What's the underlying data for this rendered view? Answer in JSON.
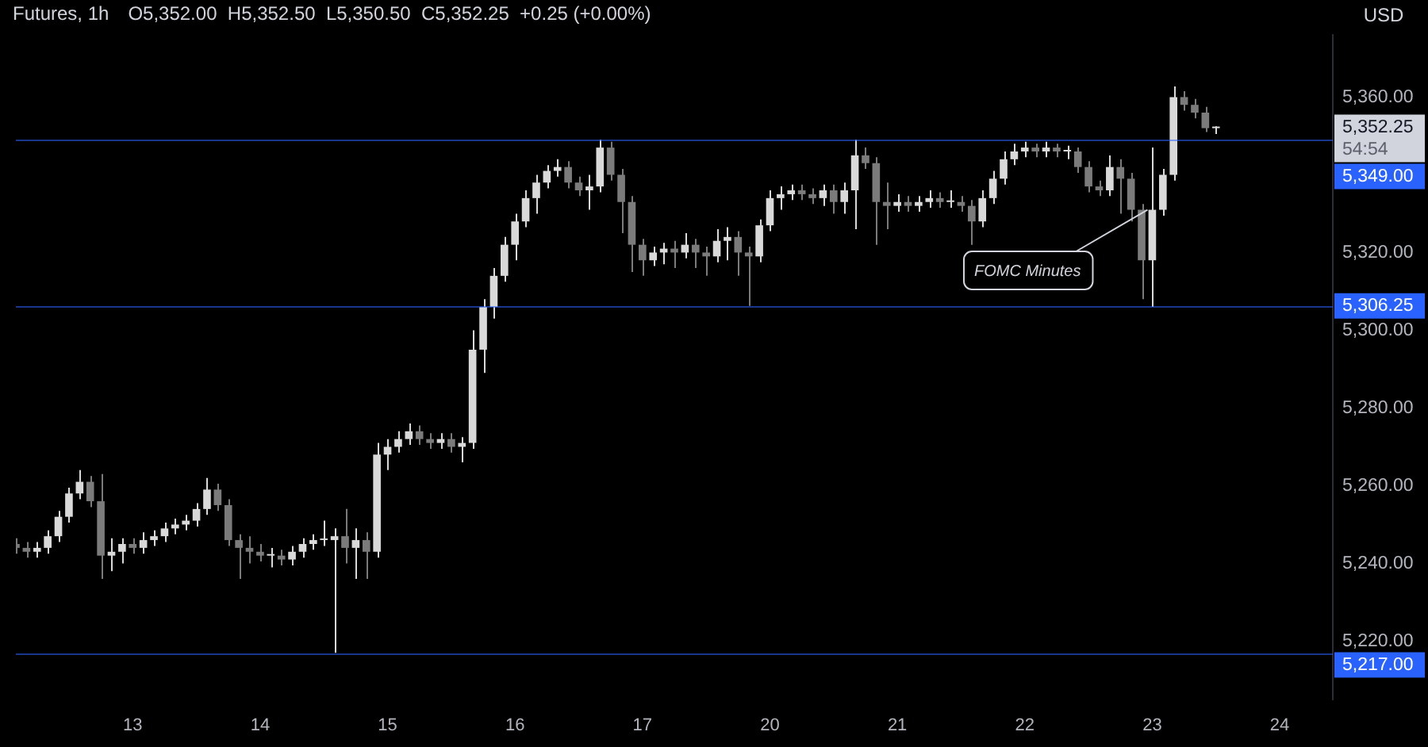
{
  "chart_data": {
    "type": "candlestick",
    "title": "Futures, 1h",
    "subtitle": "O5,352.00  H5,352.50  L5,350.50  C5,352.25  +0.25 (+0.00%)",
    "ylabel": "USD",
    "categories": [
      null,
      null,
      null,
      null,
      null,
      null,
      null,
      null,
      null,
      null,
      null,
      "13",
      null,
      null,
      null,
      null,
      null,
      null,
      null,
      null,
      null,
      null,
      null,
      "14",
      null,
      null,
      null,
      null,
      null,
      null,
      null,
      null,
      null,
      null,
      null,
      "15",
      null,
      null,
      null,
      null,
      null,
      null,
      null,
      null,
      null,
      null,
      null,
      "16",
      null,
      null,
      null,
      null,
      null,
      null,
      null,
      null,
      null,
      null,
      null,
      "17",
      null,
      null,
      null,
      null,
      null,
      null,
      null,
      null,
      null,
      null,
      null,
      "20",
      null,
      null,
      null,
      null,
      null,
      null,
      null,
      null,
      null,
      null,
      null,
      "21",
      null,
      null,
      null,
      null,
      null,
      null,
      null,
      null,
      null,
      null,
      null,
      "22",
      null,
      null,
      null,
      null,
      null,
      null,
      null,
      null,
      null,
      null,
      null,
      "23",
      null,
      null,
      null,
      null,
      null,
      null,
      null,
      null,
      null,
      null,
      null,
      "24",
      null,
      null,
      null,
      null,
      null
    ],
    "ohlc": [
      [
        5245,
        5246.5,
        5242.5,
        5244
      ],
      [
        5244,
        5245.5,
        5241.5,
        5243
      ],
      [
        5243,
        5245.5,
        5241.5,
        5244
      ],
      [
        5244,
        5248.5,
        5242.5,
        5247
      ],
      [
        5247,
        5253.5,
        5245.5,
        5252
      ],
      [
        5252,
        5259.5,
        5250.5,
        5258
      ],
      [
        5258,
        5264,
        5256.5,
        5261
      ],
      [
        5261,
        5262.5,
        5254.5,
        5256
      ],
      [
        5256,
        5263,
        5236,
        5242
      ],
      [
        5242,
        5246.5,
        5238,
        5243
      ],
      [
        5243,
        5246.5,
        5240,
        5245
      ],
      [
        5245,
        5246.5,
        5242.5,
        5244
      ],
      [
        5244,
        5248,
        5242.5,
        5246
      ],
      [
        5246,
        5248.5,
        5244.5,
        5247
      ],
      [
        5247,
        5250.5,
        5245.5,
        5249
      ],
      [
        5249,
        5251.5,
        5247.5,
        5250
      ],
      [
        5250,
        5252.5,
        5248.5,
        5251
      ],
      [
        5251,
        5255.5,
        5249.5,
        5254
      ],
      [
        5254,
        5262,
        5252.5,
        5259
      ],
      [
        5259,
        5260.5,
        5253.5,
        5255
      ],
      [
        5255,
        5256.5,
        5244.5,
        5246
      ],
      [
        5246,
        5247.5,
        5236,
        5244
      ],
      [
        5244,
        5247,
        5240,
        5243
      ],
      [
        5243,
        5245,
        5240.5,
        5242
      ],
      [
        5242,
        5244,
        5239,
        5242
      ],
      [
        5242,
        5243.5,
        5239.5,
        5241
      ],
      [
        5241,
        5244.5,
        5239.5,
        5243
      ],
      [
        5243,
        5246.5,
        5241.5,
        5245
      ],
      [
        5245,
        5247.5,
        5243.5,
        5246
      ],
      [
        5246,
        5251,
        5244.5,
        5246
      ],
      [
        5246,
        5249,
        5217,
        5247
      ],
      [
        5247,
        5254,
        5240,
        5244
      ],
      [
        5244,
        5249,
        5236,
        5246
      ],
      [
        5246,
        5248,
        5236,
        5243
      ],
      [
        5243,
        5271,
        5241.5,
        5268
      ],
      [
        5268,
        5272,
        5264,
        5270
      ],
      [
        5270,
        5274,
        5268.5,
        5272
      ],
      [
        5272,
        5276,
        5270.5,
        5274
      ],
      [
        5274,
        5275.5,
        5270.5,
        5272
      ],
      [
        5272,
        5273.5,
        5269.5,
        5271
      ],
      [
        5271,
        5273.5,
        5269.5,
        5272
      ],
      [
        5272,
        5273.5,
        5268.5,
        5270
      ],
      [
        5270,
        5272.5,
        5266,
        5271
      ],
      [
        5271,
        5300,
        5269.5,
        5295
      ],
      [
        5295,
        5308,
        5289,
        5306
      ],
      [
        5306,
        5316,
        5303,
        5314
      ],
      [
        5314,
        5324,
        5312.5,
        5322
      ],
      [
        5322,
        5330,
        5318,
        5328
      ],
      [
        5328,
        5336,
        5326.5,
        5334
      ],
      [
        5334,
        5340,
        5330,
        5338
      ],
      [
        5338,
        5342.5,
        5336.5,
        5341
      ],
      [
        5341,
        5344,
        5339.5,
        5342
      ],
      [
        5342,
        5343.5,
        5336.5,
        5338
      ],
      [
        5338,
        5339.5,
        5334.5,
        5336
      ],
      [
        5336,
        5340,
        5331,
        5337
      ],
      [
        5337,
        5349,
        5335.5,
        5347
      ],
      [
        5347,
        5348.5,
        5338.5,
        5340
      ],
      [
        5340,
        5341.5,
        5325,
        5333
      ],
      [
        5333,
        5334.5,
        5315,
        5322
      ],
      [
        5322,
        5323.5,
        5314,
        5318
      ],
      [
        5318,
        5321.5,
        5316.5,
        5320
      ],
      [
        5320,
        5322.5,
        5317,
        5321
      ],
      [
        5321,
        5323,
        5316,
        5320
      ],
      [
        5320,
        5325,
        5318.5,
        5322
      ],
      [
        5322,
        5323.5,
        5316,
        5320
      ],
      [
        5320,
        5321.5,
        5314,
        5319
      ],
      [
        5319,
        5326,
        5317.5,
        5323
      ],
      [
        5323,
        5326.5,
        5318,
        5324
      ],
      [
        5324,
        5325.5,
        5314,
        5320
      ],
      [
        5320,
        5321.5,
        5306.25,
        5319
      ],
      [
        5319,
        5328.5,
        5317.5,
        5327
      ],
      [
        5327,
        5336,
        5325.5,
        5334
      ],
      [
        5334,
        5337,
        5331,
        5335
      ],
      [
        5335,
        5337.5,
        5333.5,
        5336
      ],
      [
        5336,
        5337.5,
        5333.5,
        5335
      ],
      [
        5335,
        5336.5,
        5332.5,
        5334
      ],
      [
        5334,
        5337.5,
        5332,
        5336
      ],
      [
        5336,
        5337.5,
        5330,
        5333
      ],
      [
        5333,
        5338,
        5330,
        5336
      ],
      [
        5336,
        5349,
        5326,
        5345
      ],
      [
        5345,
        5347,
        5341.5,
        5343
      ],
      [
        5343,
        5344.5,
        5322,
        5333
      ],
      [
        5333,
        5338,
        5326,
        5332
      ],
      [
        5332,
        5335,
        5330.5,
        5333
      ],
      [
        5333,
        5334.5,
        5330.5,
        5332
      ],
      [
        5332,
        5334.5,
        5330.5,
        5333
      ],
      [
        5333,
        5336,
        5331.5,
        5334
      ],
      [
        5334,
        5335.5,
        5331.5,
        5333
      ],
      [
        5333,
        5336,
        5331.5,
        5333
      ],
      [
        5333,
        5334.5,
        5330.5,
        5332
      ],
      [
        5332,
        5333.5,
        5322,
        5328
      ],
      [
        5328,
        5336,
        5326.5,
        5334
      ],
      [
        5334,
        5341,
        5332.5,
        5339
      ],
      [
        5339,
        5346,
        5337.5,
        5344
      ],
      [
        5344,
        5348,
        5342.5,
        5346
      ],
      [
        5346,
        5348.5,
        5344.5,
        5347
      ],
      [
        5347,
        5348,
        5344.5,
        5346
      ],
      [
        5346,
        5348.5,
        5344.5,
        5347
      ],
      [
        5347,
        5348,
        5344.5,
        5346
      ],
      [
        5346,
        5347.5,
        5344,
        5346
      ],
      [
        5346,
        5347,
        5340.5,
        5342
      ],
      [
        5342,
        5343.5,
        5335.5,
        5337
      ],
      [
        5337,
        5338.5,
        5334.5,
        5336
      ],
      [
        5336,
        5345,
        5334.5,
        5342
      ],
      [
        5342,
        5344,
        5330,
        5339
      ],
      [
        5339,
        5340.5,
        5328,
        5331
      ],
      [
        5331,
        5332.5,
        5308,
        5318
      ],
      [
        5318,
        5347,
        5306,
        5331
      ],
      [
        5331,
        5341.5,
        5329.5,
        5340
      ],
      [
        5340,
        5362.75,
        5338.5,
        5360
      ],
      [
        5360,
        5361.5,
        5356.5,
        5358
      ],
      [
        5358,
        5359.5,
        5354.5,
        5356
      ],
      [
        5356,
        5357.5,
        5351,
        5352
      ],
      [
        5352,
        5352.5,
        5350.5,
        5352.25
      ],
      null,
      null,
      null,
      null,
      null,
      null,
      null,
      null,
      null,
      null,
      null
    ],
    "colors": [
      "#7b7b7b",
      "#7b7b7b",
      "#d9d9d9",
      "#d9d9d9",
      "#d9d9d9",
      "#d9d9d9",
      "#d9d9d9",
      "#7b7b7b",
      "#7b7b7b",
      "#d9d9d9",
      "#d9d9d9",
      "#7b7b7b",
      "#d9d9d9",
      "#d9d9d9",
      "#d9d9d9",
      "#d9d9d9",
      "#d9d9d9",
      "#d9d9d9",
      "#d9d9d9",
      "#7b7b7b",
      "#7b7b7b",
      "#7b7b7b",
      "#7b7b7b",
      "#7b7b7b",
      "#d9d9d9",
      "#7b7b7b",
      "#d9d9d9",
      "#d9d9d9",
      "#d9d9d9",
      "#d9d9d9",
      "#d9d9d9",
      "#7b7b7b",
      "#d9d9d9",
      "#7b7b7b",
      "#d9d9d9",
      "#d9d9d9",
      "#d9d9d9",
      "#d9d9d9",
      "#7b7b7b",
      "#7b7b7b",
      "#d9d9d9",
      "#7b7b7b",
      "#d9d9d9",
      "#d9d9d9",
      "#d9d9d9",
      "#d9d9d9",
      "#d9d9d9",
      "#d9d9d9",
      "#d9d9d9",
      "#d9d9d9",
      "#d9d9d9",
      "#d9d9d9",
      "#7b7b7b",
      "#7b7b7b",
      "#d9d9d9",
      "#d9d9d9",
      "#7b7b7b",
      "#7b7b7b",
      "#7b7b7b",
      "#7b7b7b",
      "#d9d9d9",
      "#d9d9d9",
      "#7b7b7b",
      "#d9d9d9",
      "#7b7b7b",
      "#7b7b7b",
      "#d9d9d9",
      "#d9d9d9",
      "#7b7b7b",
      "#7b7b7b",
      "#d9d9d9",
      "#d9d9d9",
      "#d9d9d9",
      "#d9d9d9",
      "#7b7b7b",
      "#7b7b7b",
      "#d9d9d9",
      "#7b7b7b",
      "#d9d9d9",
      "#d9d9d9",
      "#7b7b7b",
      "#7b7b7b",
      "#7b7b7b",
      "#d9d9d9",
      "#7b7b7b",
      "#d9d9d9",
      "#d9d9d9",
      "#7b7b7b",
      "#d9d9d9",
      "#7b7b7b",
      "#7b7b7b",
      "#d9d9d9",
      "#d9d9d9",
      "#d9d9d9",
      "#d9d9d9",
      "#d9d9d9",
      "#7b7b7b",
      "#d9d9d9",
      "#7b7b7b",
      "#d9d9d9",
      "#7b7b7b",
      "#7b7b7b",
      "#7b7b7b",
      "#d9d9d9",
      "#7b7b7b",
      "#7b7b7b",
      "#7b7b7b",
      "#d9d9d9",
      "#d9d9d9",
      "#d9d9d9",
      "#7b7b7b",
      "#7b7b7b",
      "#7b7b7b",
      "#d9d9d9",
      null,
      null,
      null,
      null,
      null,
      null,
      null,
      null,
      null,
      null,
      null
    ],
    "ylim": [
      5205,
      5376
    ],
    "yticks": [
      {
        "value": 5220,
        "label": "5,220.00"
      },
      {
        "value": 5240,
        "label": "5,240.00"
      },
      {
        "value": 5260,
        "label": "5,260.00"
      },
      {
        "value": 5280,
        "label": "5,280.00"
      },
      {
        "value": 5300,
        "label": "5,300.00"
      },
      {
        "value": 5320,
        "label": "5,320.00"
      },
      {
        "value": 5360,
        "label": "5,360.00"
      }
    ],
    "ref_lines": [
      {
        "axis": "y",
        "value": 5349,
        "label": "5,349.00",
        "color": "#2962ff"
      },
      {
        "axis": "y",
        "value": 5306.25,
        "label": "5,306.25",
        "color": "#2962ff"
      },
      {
        "axis": "y",
        "value": 5217,
        "label": "5,217.00",
        "color": "#2962ff"
      }
    ],
    "annotations": [
      {
        "text": "FOMC Minutes",
        "x": "23",
        "y": 5331
      },
      "5,352.25",
      "54:54"
    ],
    "grid": false,
    "legend": false
  }
}
